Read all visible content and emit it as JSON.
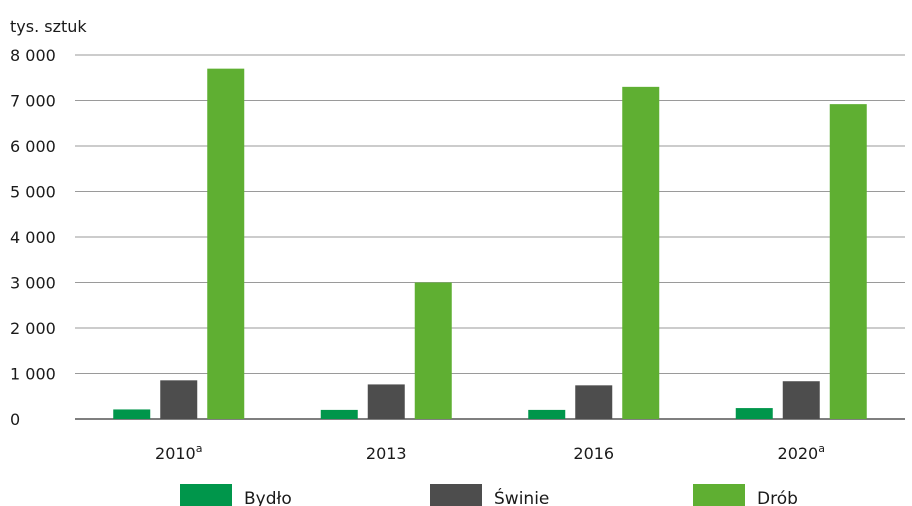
{
  "chart_data": {
    "type": "bar",
    "unit_label": "tys. sztuk",
    "categories": [
      "2010",
      "2013",
      "2016",
      "2020"
    ],
    "category_superscripts": [
      "a",
      "",
      "",
      "a"
    ],
    "series": [
      {
        "name": "Bydło",
        "color": "#00964b",
        "values": [
          210,
          200,
          200,
          240
        ]
      },
      {
        "name": "Świnie",
        "color": "#4d4d4d",
        "values": [
          850,
          760,
          740,
          830
        ]
      },
      {
        "name": "Drób",
        "color": "#5faf32",
        "values": [
          7700,
          3000,
          7300,
          6920
        ]
      }
    ],
    "ylim": [
      0,
      8000
    ],
    "yticks": [
      0,
      1000,
      2000,
      3000,
      4000,
      5000,
      6000,
      7000,
      8000
    ],
    "ytick_labels": [
      "0",
      "1 000",
      "2 000",
      "3 000",
      "4 000",
      "5 000",
      "6 000",
      "7 000",
      "8 000"
    ],
    "grid": true,
    "legend_position": "bottom"
  }
}
